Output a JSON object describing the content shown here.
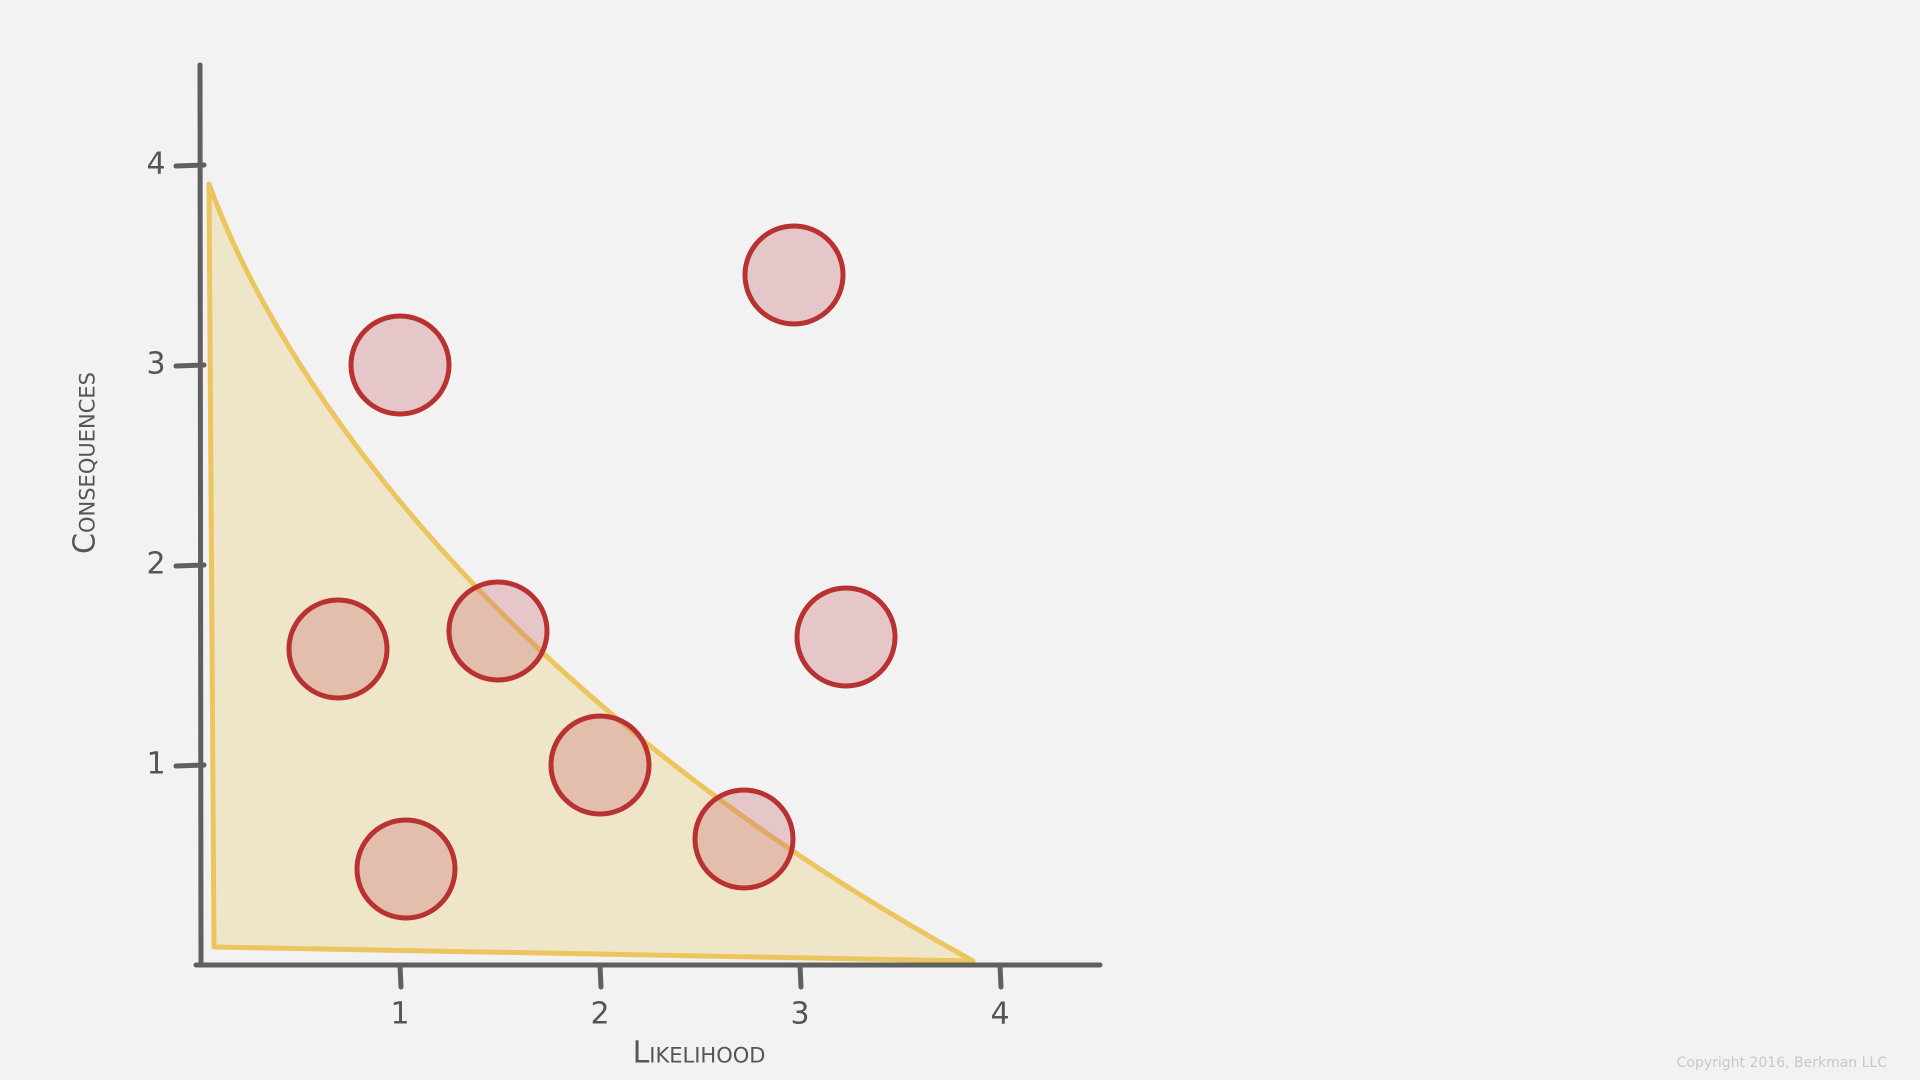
{
  "chart_data": {
    "type": "scatter",
    "x_label": "Likelihood",
    "y_label": "Consequences",
    "x": [
      2.97,
      1.0,
      0.69,
      1.49,
      3.23,
      2.0,
      2.72,
      1.03
    ],
    "y": [
      3.45,
      3.0,
      1.58,
      1.67,
      1.64,
      1.0,
      0.63,
      0.48
    ],
    "color": "#b83232",
    "xlim": [
      0,
      4.5
    ],
    "ylim": [
      0,
      4.5
    ],
    "xticks": [
      1,
      2,
      3,
      4
    ],
    "yticks": [
      1,
      2,
      3,
      4
    ],
    "source": "Copyright 2016, Berkman LLC"
  }
}
